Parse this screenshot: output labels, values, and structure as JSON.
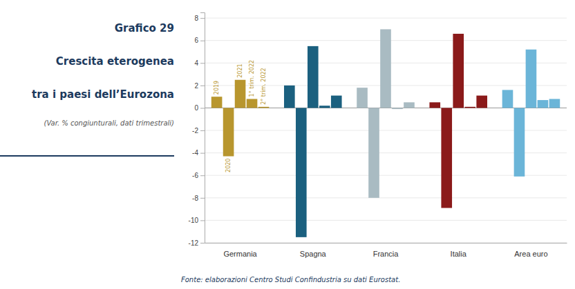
{
  "chart_data": {
    "type": "bar",
    "title": [
      "Grafico 29",
      "Crescita eterogenea",
      "tra i paesi dell’Eurozona"
    ],
    "subtitle": "(Var. % congiunturali, dati trimestrali)",
    "annotations": [
      "Fonte: elaborazioni Centro Studi Confindustria su dati Eurostat."
    ],
    "categories": [
      "Germania",
      "Spagna",
      "Francia",
      "Italia",
      "Area euro"
    ],
    "series": [
      {
        "name": "2019",
        "values": [
          1.0,
          2.0,
          1.8,
          0.5,
          1.6
        ]
      },
      {
        "name": "2020",
        "values": [
          -4.3,
          -11.5,
          -8.0,
          -8.9,
          -6.1
        ]
      },
      {
        "name": "2021",
        "values": [
          2.5,
          5.5,
          7.0,
          6.6,
          5.2
        ]
      },
      {
        "name": "1° trim. 2022",
        "values": [
          0.8,
          0.2,
          -0.1,
          0.1,
          0.7
        ]
      },
      {
        "name": "2° trim. 2022",
        "values": [
          0.1,
          1.1,
          0.5,
          1.1,
          0.8
        ]
      }
    ],
    "colors": [
      "#B8962E",
      "#1B607F",
      "#A9BBC2",
      "#8B1A1A",
      "#6BB5D8"
    ],
    "ylim": [
      -12,
      8.5
    ],
    "yticks": [
      -12,
      -10,
      -8,
      -6,
      -4,
      -2,
      0,
      2,
      4,
      6,
      8
    ],
    "grid": true
  }
}
